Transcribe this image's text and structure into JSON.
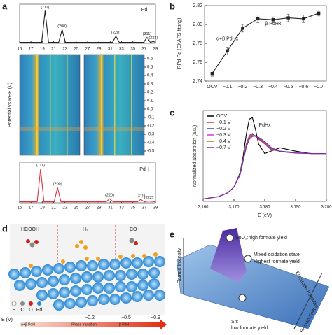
{
  "chart_data": [
    {
      "type": "line",
      "title": "Pd",
      "color": "#222222",
      "x": [
        15,
        18.9,
        19.5,
        20.1,
        21.9,
        22.5,
        23.1,
        31.4,
        32,
        32.6,
        36.9,
        37.5,
        38.1,
        38.6,
        39
      ],
      "values": [
        0.03,
        0.03,
        1,
        0.03,
        0.03,
        0.42,
        0.03,
        0.03,
        0.22,
        0.03,
        0.03,
        0.18,
        0.03,
        0.06,
        0.03
      ],
      "xlim": [
        15,
        39
      ],
      "ylim": [
        0,
        1.2
      ],
      "xticks": [
        15,
        17,
        19,
        21,
        23,
        25,
        27,
        29,
        31,
        33,
        35,
        37,
        39
      ],
      "annotations": [
        {
          "text": "(111)",
          "x": 19.5,
          "y": 1
        },
        {
          "text": "(200)",
          "x": 22.5,
          "y": 0.42
        },
        {
          "text": "(220)",
          "x": 32,
          "y": 0.22
        },
        {
          "text": "(311)",
          "x": 37.5,
          "y": 0.18
        },
        {
          "text": "(222)",
          "x": 38.6,
          "y": 0.06
        }
      ]
    },
    {
      "type": "heatmap",
      "ylabel": "Potential vs RHE (V)",
      "ylim": [
        -0.55,
        0.65
      ],
      "yticks": [
        0.6,
        0.5,
        0.4,
        0.3,
        0.2,
        0.1,
        {
          "value": 0,
          "label": "0.0"
        },
        -0.1,
        -0.2,
        -0.3,
        -0.4,
        -0.5
      ]
    },
    {
      "type": "line",
      "title": "PdH",
      "color": "#e0303a",
      "x": [
        15,
        18.1,
        18.7,
        19.3,
        21.1,
        21.7,
        22.3,
        30.3,
        30.9,
        31.5,
        35.8,
        36.4,
        37,
        37.8,
        39
      ],
      "values": [
        0.03,
        0.03,
        1,
        0.03,
        0.03,
        0.45,
        0.03,
        0.03,
        0.12,
        0.03,
        0.03,
        0.1,
        0.03,
        0.05,
        0.03
      ],
      "xlim": [
        15,
        39
      ],
      "ylim": [
        0,
        1.2
      ],
      "xticks": [
        15,
        17,
        19,
        21,
        23,
        25,
        27,
        29,
        31,
        33,
        35,
        37,
        39
      ],
      "annotations": [
        {
          "text": "(111)",
          "x": 18.7,
          "y": 1
        },
        {
          "text": "(200)",
          "x": 21.7,
          "y": 0.45
        },
        {
          "text": "(220)",
          "x": 30.9,
          "y": 0.12
        },
        {
          "text": "(311)",
          "x": 36.4,
          "y": 0.1
        },
        {
          "text": "(222)",
          "x": 37.8,
          "y": 0.05
        }
      ]
    },
    {
      "type": "line",
      "ylabel": "RPd-Pd (EXAFS fitting)",
      "color": "#222222",
      "markers": true,
      "categories": [
        "OCV",
        "−0.1",
        "−0.2",
        "−0.3",
        "−0.4",
        "−0.5",
        "−0.6",
        "−0.7"
      ],
      "values": [
        2.748,
        2.772,
        2.796,
        2.806,
        2.805,
        2.807,
        2.806,
        2.812
      ],
      "errors": [
        0.003,
        0.004,
        0.004,
        0.004,
        0.003,
        0.004,
        0.004,
        0.003
      ],
      "ylim": [
        2.74,
        2.82
      ],
      "yticks": [
        2.74,
        2.76,
        2.78,
        {
          "value": 2.8,
          "label": "2.80"
        },
        2.82
      ],
      "annotations": [
        {
          "text": "β PdHx",
          "category": "−0.4",
          "y": 2.797
        },
        {
          "text": "α+β PdHx",
          "category": "−0.1",
          "y": 2.781
        }
      ]
    },
    {
      "type": "line",
      "xlabel": "E (eV)",
      "ylabel": "Normalized absorption (a.u.)",
      "legend": "upper left",
      "x": [
        3160,
        3165,
        3168,
        3170,
        3172,
        3173,
        3174,
        3175,
        3176,
        3177,
        3178,
        3180,
        3182,
        3185,
        3190,
        3195,
        3200
      ],
      "series": [
        {
          "name": "OCV",
          "color": "#000000",
          "values": [
            0.05,
            0.1,
            0.18,
            0.3,
            0.6,
            0.95,
            1.4,
            1.72,
            1.75,
            1.5,
            1.2,
            1.0,
            1.05,
            1.12,
            1.05,
            1.0,
            1.0
          ]
        },
        {
          "name": "−0.1 V",
          "color": "#e0302a",
          "values": [
            0.05,
            0.1,
            0.18,
            0.3,
            0.58,
            0.9,
            1.2,
            1.38,
            1.42,
            1.36,
            1.3,
            1.2,
            1.08,
            1.05,
            1.02,
            1.0,
            1.0
          ]
        },
        {
          "name": "−0.2 V",
          "color": "#2a3fd8",
          "values": [
            0.05,
            0.1,
            0.18,
            0.3,
            0.58,
            0.88,
            1.18,
            1.36,
            1.4,
            1.37,
            1.32,
            1.22,
            1.1,
            1.05,
            1.02,
            1.0,
            1.0
          ]
        },
        {
          "name": "−0.3 V",
          "color": "#d03ad0",
          "values": [
            0.05,
            0.1,
            0.18,
            0.3,
            0.57,
            0.87,
            1.16,
            1.34,
            1.39,
            1.37,
            1.33,
            1.23,
            1.11,
            1.04,
            1.02,
            1.0,
            1.0
          ]
        },
        {
          "name": "−0.4 V",
          "color": "#8a8a10",
          "values": [
            0.05,
            0.1,
            0.18,
            0.3,
            0.56,
            0.86,
            1.15,
            1.32,
            1.38,
            1.37,
            1.34,
            1.24,
            1.12,
            1.04,
            1.01,
            1.0,
            1.0
          ]
        },
        {
          "name": "−0.7 V",
          "color": "#7a2ab0",
          "values": [
            0.05,
            0.1,
            0.18,
            0.3,
            0.56,
            0.85,
            1.13,
            1.3,
            1.36,
            1.36,
            1.34,
            1.25,
            1.13,
            1.04,
            1.01,
            1.0,
            1.0
          ]
        }
      ],
      "xlim": [
        3160,
        3200
      ],
      "ylim": [
        0,
        1.9
      ],
      "xticks": [
        {
          "value": 3160,
          "label": "3,160"
        },
        {
          "value": 3170,
          "label": "3,170"
        },
        {
          "value": 3180,
          "label": "3,180"
        },
        {
          "value": 3190,
          "label": "3,190"
        },
        {
          "value": 3200,
          "label": "3,200"
        }
      ],
      "annotations": [
        {
          "text": "PdHx",
          "x": 3180,
          "y": 1.52
        }
      ]
    }
  ],
  "panel_labels": [
    "a",
    "b",
    "c",
    "d",
    "e"
  ],
  "panel_d": {
    "phases": [
      "HCOOH",
      "H₂",
      "CO"
    ],
    "legend": [
      "H",
      "C",
      "O",
      "Pd"
    ],
    "axis": "E (V)",
    "potentials": [
      "−0.2",
      "−0.5",
      "−0.9"
    ],
    "states": [
      "α+β PdH",
      "Phase transition",
      "β PdH"
    ]
  },
  "panel_e": {
    "y_axis": "Raman Intensity",
    "high": "SnO₂:high formate yield",
    "mixed_1": "Mixed oxidation state:",
    "mixed_2": "Highest formate yield",
    "potential_axis": "Electrode Potential",
    "shift_axis": "Raman Shift",
    "low_1": "Sn:",
    "low_2": "low formate yield"
  }
}
